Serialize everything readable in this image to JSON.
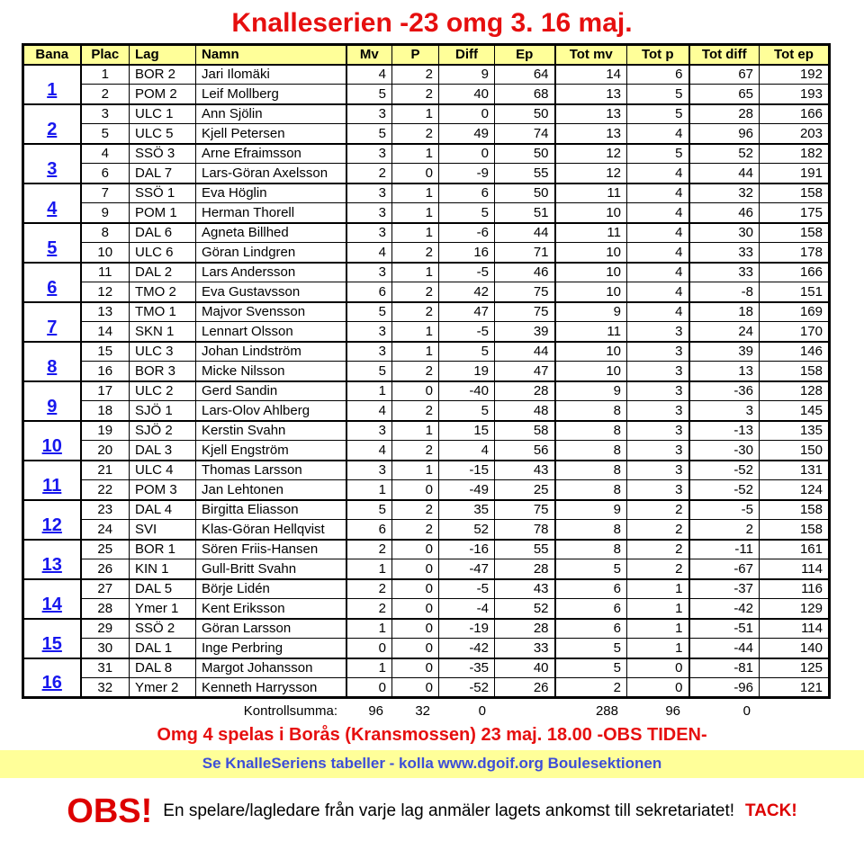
{
  "title": "Knalleserien -23 omg 3. 16 maj.",
  "colors": {
    "title_red": "#e60f0f",
    "header_yellow": "#ffff99",
    "bana_blue": "#1717ee",
    "banner_text_blue": "#3d4ed8",
    "notice_red": "#dd0000"
  },
  "table": {
    "headers": [
      "Bana",
      "Plac",
      "Lag",
      "Namn",
      "Mv",
      "P",
      "Diff",
      "Ep",
      "Tot mv",
      "Tot p",
      "Tot diff",
      "Tot ep"
    ],
    "groups": [
      {
        "bana": "1",
        "rows": [
          {
            "plac": "1",
            "lag": "BOR 2",
            "namn": "Jari Ilomäki",
            "mv": "4",
            "p": "2",
            "diff": "9",
            "ep": "64",
            "tot_mv": "14",
            "tot_p": "6",
            "tot_diff": "67",
            "tot_ep": "192"
          },
          {
            "plac": "2",
            "lag": "POM 2",
            "namn": "Leif Mollberg",
            "mv": "5",
            "p": "2",
            "diff": "40",
            "ep": "68",
            "tot_mv": "13",
            "tot_p": "5",
            "tot_diff": "65",
            "tot_ep": "193"
          }
        ]
      },
      {
        "bana": "2",
        "rows": [
          {
            "plac": "3",
            "lag": "ULC 1",
            "namn": "Ann Sjölin",
            "mv": "3",
            "p": "1",
            "diff": "0",
            "ep": "50",
            "tot_mv": "13",
            "tot_p": "5",
            "tot_diff": "28",
            "tot_ep": "166"
          },
          {
            "plac": "5",
            "lag": "ULC 5",
            "namn": "Kjell Petersen",
            "mv": "5",
            "p": "2",
            "diff": "49",
            "ep": "74",
            "tot_mv": "13",
            "tot_p": "4",
            "tot_diff": "96",
            "tot_ep": "203"
          }
        ]
      },
      {
        "bana": "3",
        "rows": [
          {
            "plac": "4",
            "lag": "SSÖ 3",
            "namn": "Arne Efraimsson",
            "mv": "3",
            "p": "1",
            "diff": "0",
            "ep": "50",
            "tot_mv": "12",
            "tot_p": "5",
            "tot_diff": "52",
            "tot_ep": "182"
          },
          {
            "plac": "6",
            "lag": "DAL 7",
            "namn": "Lars-Göran Axelsson",
            "mv": "2",
            "p": "0",
            "diff": "-9",
            "ep": "55",
            "tot_mv": "12",
            "tot_p": "4",
            "tot_diff": "44",
            "tot_ep": "191"
          }
        ]
      },
      {
        "bana": "4",
        "rows": [
          {
            "plac": "7",
            "lag": "SSÖ 1",
            "namn": "Eva Höglin",
            "mv": "3",
            "p": "1",
            "diff": "6",
            "ep": "50",
            "tot_mv": "11",
            "tot_p": "4",
            "tot_diff": "32",
            "tot_ep": "158"
          },
          {
            "plac": "9",
            "lag": "POM 1",
            "namn": "Herman Thorell",
            "mv": "3",
            "p": "1",
            "diff": "5",
            "ep": "51",
            "tot_mv": "10",
            "tot_p": "4",
            "tot_diff": "46",
            "tot_ep": "175"
          }
        ]
      },
      {
        "bana": "5",
        "rows": [
          {
            "plac": "8",
            "lag": "DAL 6",
            "namn": "Agneta Billhed",
            "mv": "3",
            "p": "1",
            "diff": "-6",
            "ep": "44",
            "tot_mv": "11",
            "tot_p": "4",
            "tot_diff": "30",
            "tot_ep": "158"
          },
          {
            "plac": "10",
            "lag": "ULC 6",
            "namn": "Göran Lindgren",
            "mv": "4",
            "p": "2",
            "diff": "16",
            "ep": "71",
            "tot_mv": "10",
            "tot_p": "4",
            "tot_diff": "33",
            "tot_ep": "178"
          }
        ]
      },
      {
        "bana": "6",
        "rows": [
          {
            "plac": "11",
            "lag": "DAL 2",
            "namn": "Lars Andersson",
            "mv": "3",
            "p": "1",
            "diff": "-5",
            "ep": "46",
            "tot_mv": "10",
            "tot_p": "4",
            "tot_diff": "33",
            "tot_ep": "166"
          },
          {
            "plac": "12",
            "lag": "TMO 2",
            "namn": "Eva Gustavsson",
            "mv": "6",
            "p": "2",
            "diff": "42",
            "ep": "75",
            "tot_mv": "10",
            "tot_p": "4",
            "tot_diff": "-8",
            "tot_ep": "151"
          }
        ]
      },
      {
        "bana": "7",
        "rows": [
          {
            "plac": "13",
            "lag": "TMO 1",
            "namn": "Majvor Svensson",
            "mv": "5",
            "p": "2",
            "diff": "47",
            "ep": "75",
            "tot_mv": "9",
            "tot_p": "4",
            "tot_diff": "18",
            "tot_ep": "169"
          },
          {
            "plac": "14",
            "lag": "SKN 1",
            "namn": "Lennart Olsson",
            "mv": "3",
            "p": "1",
            "diff": "-5",
            "ep": "39",
            "tot_mv": "11",
            "tot_p": "3",
            "tot_diff": "24",
            "tot_ep": "170"
          }
        ]
      },
      {
        "bana": "8",
        "rows": [
          {
            "plac": "15",
            "lag": "ULC 3",
            "namn": "Johan Lindström",
            "mv": "3",
            "p": "1",
            "diff": "5",
            "ep": "44",
            "tot_mv": "10",
            "tot_p": "3",
            "tot_diff": "39",
            "tot_ep": "146"
          },
          {
            "plac": "16",
            "lag": "BOR 3",
            "namn": "Micke Nilsson",
            "mv": "5",
            "p": "2",
            "diff": "19",
            "ep": "47",
            "tot_mv": "10",
            "tot_p": "3",
            "tot_diff": "13",
            "tot_ep": "158"
          }
        ]
      },
      {
        "bana": "9",
        "rows": [
          {
            "plac": "17",
            "lag": "ULC 2",
            "namn": "Gerd Sandin",
            "mv": "1",
            "p": "0",
            "diff": "-40",
            "ep": "28",
            "tot_mv": "9",
            "tot_p": "3",
            "tot_diff": "-36",
            "tot_ep": "128"
          },
          {
            "plac": "18",
            "lag": "SJÖ 1",
            "namn": "Lars-Olov Ahlberg",
            "mv": "4",
            "p": "2",
            "diff": "5",
            "ep": "48",
            "tot_mv": "8",
            "tot_p": "3",
            "tot_diff": "3",
            "tot_ep": "145"
          }
        ]
      },
      {
        "bana": "10",
        "rows": [
          {
            "plac": "19",
            "lag": "SJÖ 2",
            "namn": "Kerstin Svahn",
            "mv": "3",
            "p": "1",
            "diff": "15",
            "ep": "58",
            "tot_mv": "8",
            "tot_p": "3",
            "tot_diff": "-13",
            "tot_ep": "135"
          },
          {
            "plac": "20",
            "lag": "DAL 3",
            "namn": "Kjell Engström",
            "mv": "4",
            "p": "2",
            "diff": "4",
            "ep": "56",
            "tot_mv": "8",
            "tot_p": "3",
            "tot_diff": "-30",
            "tot_ep": "150"
          }
        ]
      },
      {
        "bana": "11",
        "rows": [
          {
            "plac": "21",
            "lag": "ULC 4",
            "namn": "Thomas Larsson",
            "mv": "3",
            "p": "1",
            "diff": "-15",
            "ep": "43",
            "tot_mv": "8",
            "tot_p": "3",
            "tot_diff": "-52",
            "tot_ep": "131"
          },
          {
            "plac": "22",
            "lag": "POM 3",
            "namn": "Jan Lehtonen",
            "mv": "1",
            "p": "0",
            "diff": "-49",
            "ep": "25",
            "tot_mv": "8",
            "tot_p": "3",
            "tot_diff": "-52",
            "tot_ep": "124"
          }
        ]
      },
      {
        "bana": "12",
        "rows": [
          {
            "plac": "23",
            "lag": "DAL 4",
            "namn": "Birgitta Eliasson",
            "mv": "5",
            "p": "2",
            "diff": "35",
            "ep": "75",
            "tot_mv": "9",
            "tot_p": "2",
            "tot_diff": "-5",
            "tot_ep": "158"
          },
          {
            "plac": "24",
            "lag": "SVI",
            "namn": "Klas-Göran Hellqvist",
            "mv": "6",
            "p": "2",
            "diff": "52",
            "ep": "78",
            "tot_mv": "8",
            "tot_p": "2",
            "tot_diff": "2",
            "tot_ep": "158"
          }
        ]
      },
      {
        "bana": "13",
        "rows": [
          {
            "plac": "25",
            "lag": "BOR 1",
            "namn": "Sören Friis-Hansen",
            "mv": "2",
            "p": "0",
            "diff": "-16",
            "ep": "55",
            "tot_mv": "8",
            "tot_p": "2",
            "tot_diff": "-11",
            "tot_ep": "161"
          },
          {
            "plac": "26",
            "lag": "KIN 1",
            "namn": "Gull-Britt Svahn",
            "mv": "1",
            "p": "0",
            "diff": "-47",
            "ep": "28",
            "tot_mv": "5",
            "tot_p": "2",
            "tot_diff": "-67",
            "tot_ep": "114"
          }
        ]
      },
      {
        "bana": "14",
        "rows": [
          {
            "plac": "27",
            "lag": "DAL 5",
            "namn": "Börje Lidén",
            "mv": "2",
            "p": "0",
            "diff": "-5",
            "ep": "43",
            "tot_mv": "6",
            "tot_p": "1",
            "tot_diff": "-37",
            "tot_ep": "116"
          },
          {
            "plac": "28",
            "lag": "Ymer 1",
            "namn": "Kent Eriksson",
            "mv": "2",
            "p": "0",
            "diff": "-4",
            "ep": "52",
            "tot_mv": "6",
            "tot_p": "1",
            "tot_diff": "-42",
            "tot_ep": "129"
          }
        ]
      },
      {
        "bana": "15",
        "rows": [
          {
            "plac": "29",
            "lag": "SSÖ 2",
            "namn": "Göran Larsson",
            "mv": "1",
            "p": "0",
            "diff": "-19",
            "ep": "28",
            "tot_mv": "6",
            "tot_p": "1",
            "tot_diff": "-51",
            "tot_ep": "114"
          },
          {
            "plac": "30",
            "lag": "DAL 1",
            "namn": "Inge Perbring",
            "mv": "0",
            "p": "0",
            "diff": "-42",
            "ep": "33",
            "tot_mv": "5",
            "tot_p": "1",
            "tot_diff": "-44",
            "tot_ep": "140"
          }
        ]
      },
      {
        "bana": "16",
        "rows": [
          {
            "plac": "31",
            "lag": "DAL 8",
            "namn": "Margot Johansson",
            "mv": "1",
            "p": "0",
            "diff": "-35",
            "ep": "40",
            "tot_mv": "5",
            "tot_p": "0",
            "tot_diff": "-81",
            "tot_ep": "125"
          },
          {
            "plac": "32",
            "lag": "Ymer 2",
            "namn": "Kenneth Harrysson",
            "mv": "0",
            "p": "0",
            "diff": "-52",
            "ep": "26",
            "tot_mv": "2",
            "tot_p": "0",
            "tot_diff": "-96",
            "tot_ep": "121"
          }
        ]
      }
    ],
    "kontrollsumma": {
      "label": "Kontrollsumma:",
      "mv": "96",
      "p": "32",
      "diff": "0",
      "tot_mv": "288",
      "tot_p": "96",
      "tot_diff": "0"
    }
  },
  "footer": {
    "next_round": "Omg 4 spelas i Borås (Kransmossen) 23 maj. 18.00 -OBS TIDEN-",
    "banner": "Se KnalleSeriens tabeller - kolla www.dgoif.org Boulesektionen",
    "obs": "OBS!",
    "notice": "En spelare/lagledare från varje lag anmäler lagets ankomst till sekretariatet!",
    "tack": "TACK!"
  }
}
